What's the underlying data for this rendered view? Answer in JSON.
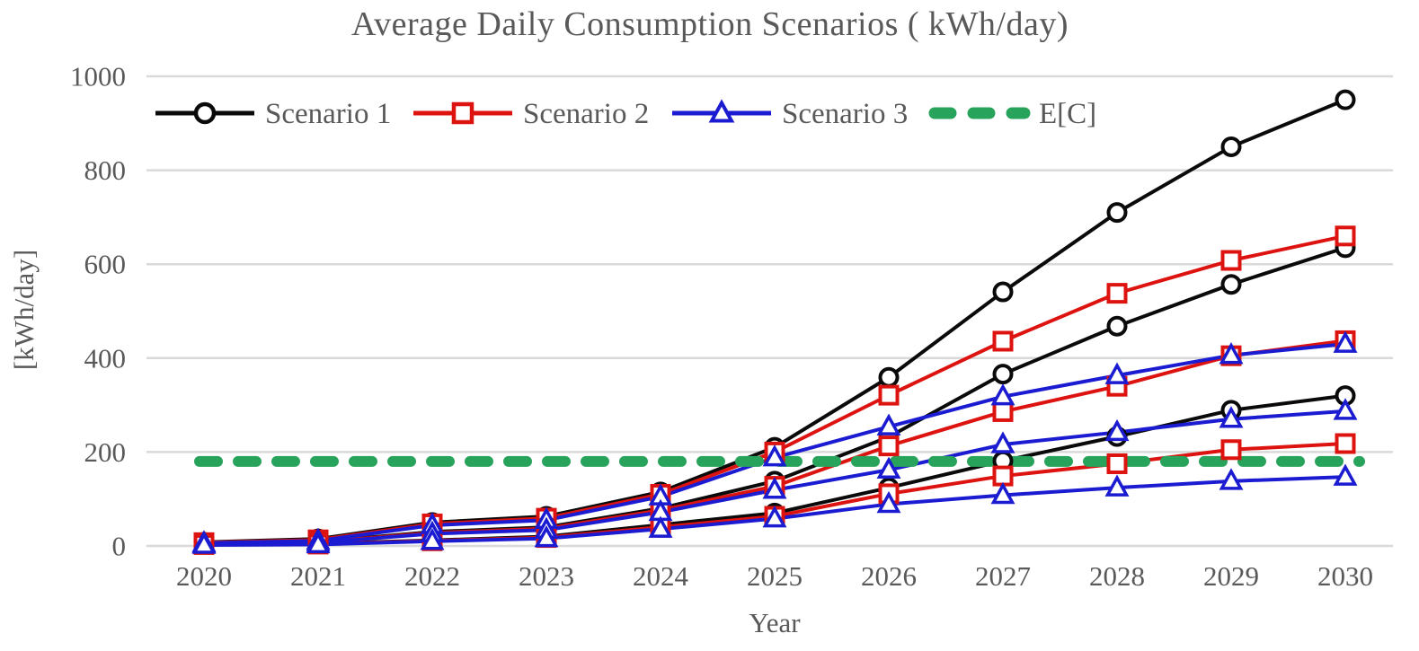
{
  "chart_data": {
    "type": "line",
    "title": "Average Daily Consumption Scenarios ( kWh/day)",
    "xlabel": "Year",
    "ylabel": "[kWh/day]",
    "x": [
      2020,
      2021,
      2022,
      2023,
      2024,
      2025,
      2026,
      2027,
      2028,
      2029,
      2030
    ],
    "ylim": [
      0,
      1000
    ],
    "yticks": [
      0,
      200,
      400,
      600,
      800,
      1000
    ],
    "grid": "horizontal-only",
    "legend_position": "top-inside-horizontal",
    "colors": {
      "scenario1": "#0a0a0a",
      "scenario2": "#dd1310",
      "scenario3": "#1b1bd1",
      "expected": "#28a35c",
      "text": "#595959",
      "gridline": "#d9d9d9",
      "marker_fill": "#ffffff"
    },
    "series": [
      {
        "name": "Scenario 1",
        "color": "#0a0a0a",
        "marker": "circle",
        "lines": [
          {
            "id": "max",
            "values": [
              8,
              15,
              50,
              63,
              115,
              210,
              359,
              541,
              710,
              850,
              950
            ]
          },
          {
            "id": "mean",
            "values": [
              6,
              9,
              30,
              40,
              80,
              138,
              232,
              366,
              468,
              557,
              635
            ]
          },
          {
            "id": "min",
            "values": [
              4,
              5,
              12,
              20,
              45,
              70,
              124,
              181,
              233,
              289,
              320
            ]
          }
        ]
      },
      {
        "name": "Scenario 2",
        "color": "#dd1310",
        "marker": "square",
        "lines": [
          {
            "id": "max",
            "values": [
              7,
              13,
              47,
              59,
              110,
              200,
              321,
              436,
              538,
              608,
              660
            ]
          },
          {
            "id": "mean",
            "values": [
              5,
              8,
              28,
              37,
              76,
              127,
              213,
              286,
              340,
              405,
              437
            ]
          },
          {
            "id": "min",
            "values": [
              3,
              4,
              11,
              18,
              40,
              63,
              111,
              149,
              175,
              205,
              218
            ]
          }
        ]
      },
      {
        "name": "Scenario 3",
        "color": "#1b1bd1",
        "marker": "triangle",
        "lines": [
          {
            "id": "max",
            "values": [
              6,
              11,
              44,
              55,
              105,
              188,
              254,
              318,
              363,
              406,
              430
            ]
          },
          {
            "id": "mean",
            "values": [
              4,
              7,
              26,
              34,
              72,
              119,
              162,
              216,
              242,
              270,
              287
            ]
          },
          {
            "id": "min",
            "values": [
              2,
              3,
              10,
              16,
              36,
              58,
              89,
              108,
              124,
              138,
              147
            ]
          }
        ]
      }
    ],
    "expected_line": {
      "name": "E[C]",
      "value": 180,
      "style": "dashed",
      "color": "#28a35c"
    }
  }
}
